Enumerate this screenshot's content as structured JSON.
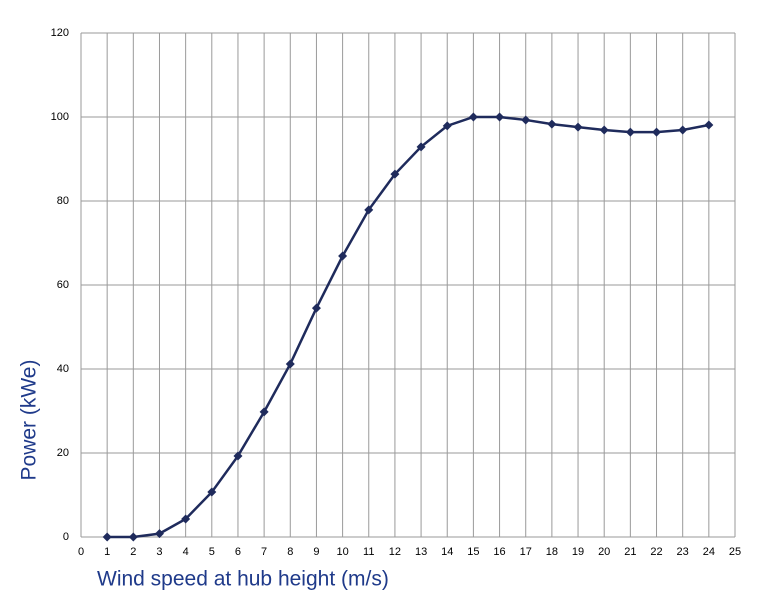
{
  "chart_data": {
    "type": "line",
    "x_label": "Wind speed at hub height (m/s)",
    "y_label": "Power  (kWe)",
    "series": [
      {
        "color": "#1f2b5c",
        "x": [
          1,
          2,
          3,
          4,
          5,
          6,
          7,
          8,
          9,
          10,
          11,
          12,
          13,
          14,
          15,
          16,
          17,
          18,
          19,
          20,
          21,
          22,
          23,
          24
        ],
        "values": [
          0,
          0,
          0.8,
          4.3,
          10.7,
          19.3,
          29.8,
          41.2,
          54.5,
          66.9,
          77.9,
          86.4,
          92.9,
          97.9,
          100,
          100,
          99.3,
          98.3,
          97.6,
          96.9,
          96.4,
          96.4,
          96.9,
          98.1
        ]
      }
    ],
    "xlim": [
      0,
      25
    ],
    "xticks": [
      0,
      1,
      2,
      3,
      4,
      5,
      6,
      7,
      8,
      9,
      10,
      11,
      12,
      13,
      14,
      15,
      16,
      17,
      18,
      19,
      20,
      21,
      22,
      23,
      24,
      25
    ],
    "ylim": [
      0,
      120
    ],
    "yticks": [
      0,
      20,
      40,
      60,
      80,
      100,
      120
    ],
    "grid": true
  }
}
